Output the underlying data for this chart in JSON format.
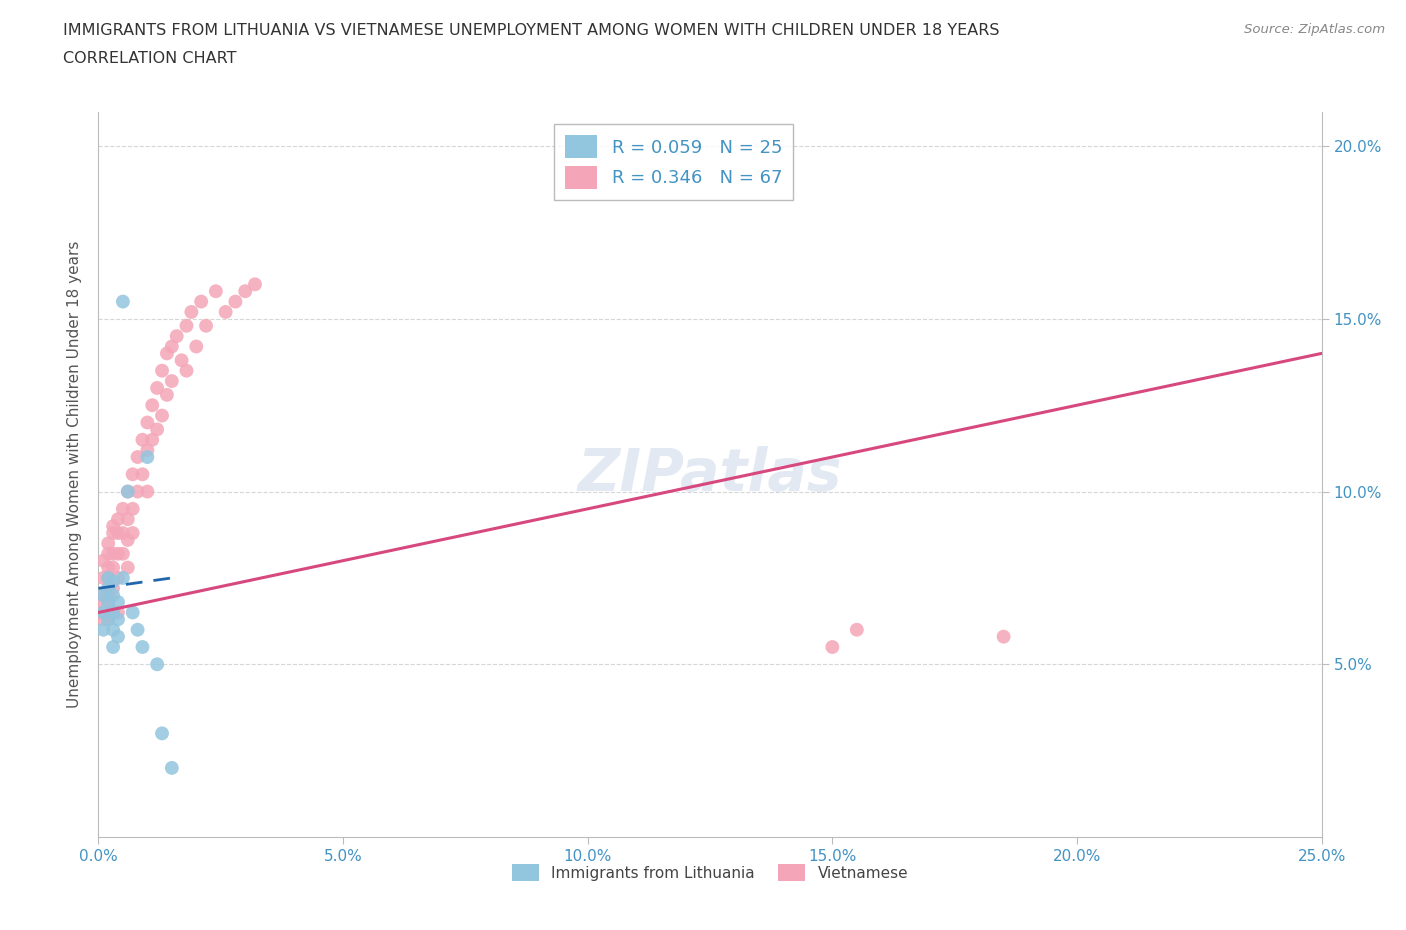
{
  "title_line1": "IMMIGRANTS FROM LITHUANIA VS VIETNAMESE UNEMPLOYMENT AMONG WOMEN WITH CHILDREN UNDER 18 YEARS",
  "title_line2": "CORRELATION CHART",
  "source_text": "Source: ZipAtlas.com",
  "ylabel": "Unemployment Among Women with Children Under 18 years",
  "xlim": [
    0,
    0.25
  ],
  "ylim": [
    0.0,
    0.21
  ],
  "legend_R_blue": "R = 0.059",
  "legend_N_blue": "N = 25",
  "legend_R_pink": "R = 0.346",
  "legend_N_pink": "N = 67",
  "legend_label_blue": "Immigrants from Lithuania",
  "legend_label_pink": "Vietnamese",
  "blue_color": "#92c5de",
  "pink_color": "#f4a6b8",
  "blue_line_color": "#2166ac",
  "pink_line_color": "#d6487e",
  "watermark": "ZIPatlas",
  "title_color": "#333333",
  "tick_label_color": "#4393c3",
  "background_color": "#ffffff",
  "grid_color": "#cccccc",
  "lith_x": [
    0.001,
    0.001,
    0.001,
    0.002,
    0.002,
    0.002,
    0.002,
    0.003,
    0.003,
    0.003,
    0.003,
    0.003,
    0.004,
    0.004,
    0.004,
    0.005,
    0.005,
    0.006,
    0.007,
    0.008,
    0.009,
    0.01,
    0.012,
    0.013,
    0.015
  ],
  "lith_y": [
    0.07,
    0.065,
    0.06,
    0.075,
    0.072,
    0.068,
    0.063,
    0.074,
    0.07,
    0.065,
    0.06,
    0.055,
    0.068,
    0.063,
    0.058,
    0.155,
    0.075,
    0.1,
    0.065,
    0.06,
    0.055,
    0.11,
    0.05,
    0.03,
    0.02
  ],
  "viet_x": [
    0.0,
    0.001,
    0.001,
    0.001,
    0.001,
    0.001,
    0.002,
    0.002,
    0.002,
    0.002,
    0.002,
    0.002,
    0.002,
    0.003,
    0.003,
    0.003,
    0.003,
    0.003,
    0.003,
    0.004,
    0.004,
    0.004,
    0.004,
    0.004,
    0.005,
    0.005,
    0.005,
    0.006,
    0.006,
    0.006,
    0.006,
    0.007,
    0.007,
    0.007,
    0.008,
    0.008,
    0.009,
    0.009,
    0.01,
    0.01,
    0.01,
    0.011,
    0.011,
    0.012,
    0.012,
    0.013,
    0.013,
    0.014,
    0.014,
    0.015,
    0.015,
    0.016,
    0.017,
    0.018,
    0.018,
    0.019,
    0.02,
    0.021,
    0.022,
    0.024,
    0.026,
    0.028,
    0.03,
    0.032,
    0.15,
    0.155,
    0.185
  ],
  "viet_y": [
    0.065,
    0.08,
    0.075,
    0.07,
    0.068,
    0.063,
    0.085,
    0.082,
    0.078,
    0.075,
    0.07,
    0.068,
    0.063,
    0.09,
    0.088,
    0.082,
    0.078,
    0.072,
    0.065,
    0.092,
    0.088,
    0.082,
    0.075,
    0.065,
    0.095,
    0.088,
    0.082,
    0.1,
    0.092,
    0.086,
    0.078,
    0.105,
    0.095,
    0.088,
    0.11,
    0.1,
    0.115,
    0.105,
    0.12,
    0.112,
    0.1,
    0.125,
    0.115,
    0.13,
    0.118,
    0.135,
    0.122,
    0.14,
    0.128,
    0.142,
    0.132,
    0.145,
    0.138,
    0.148,
    0.135,
    0.152,
    0.142,
    0.155,
    0.148,
    0.158,
    0.152,
    0.155,
    0.158,
    0.16,
    0.055,
    0.06,
    0.058
  ],
  "pink_line_start_x": 0.0,
  "pink_line_start_y": 0.065,
  "pink_line_end_x": 0.25,
  "pink_line_end_y": 0.14,
  "blue_line_start_x": 0.0,
  "blue_line_start_y": 0.072,
  "blue_line_end_x": 0.015,
  "blue_line_end_y": 0.075
}
